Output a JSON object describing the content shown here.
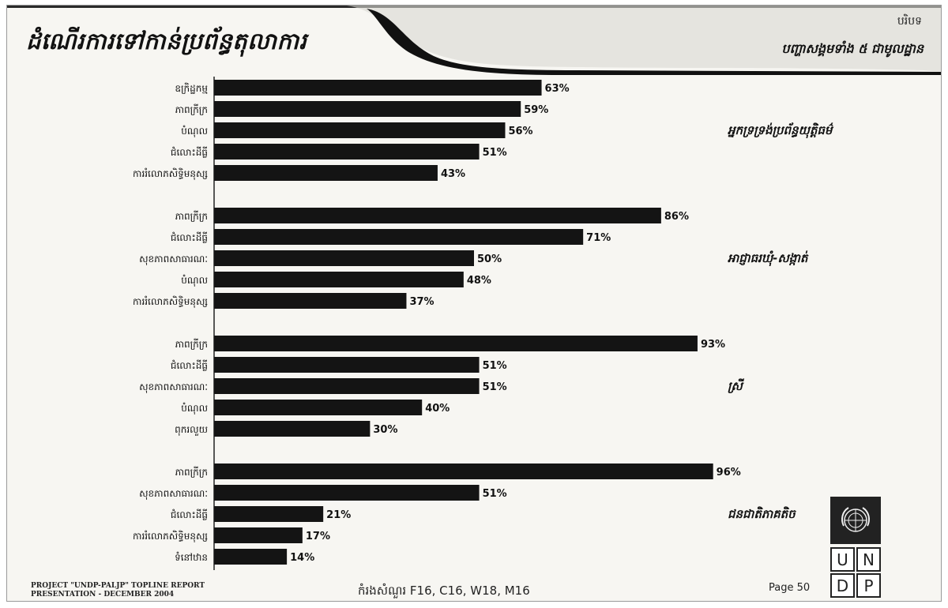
{
  "page": {
    "title": "ដំណើរការទៅកាន់ប្រព័ន្ធតុលាការ",
    "section_tag": "បរិបទ",
    "subtitle": "បញ្ហាសង្គមទាំង ៥ ជាមូលដ្ឋាន",
    "footer_project": "PROJECT \"UNDP-PALJP\" TOPLINE REPORT",
    "footer_presentation": "PRESENTATION - DECEMBER 2004",
    "footer_source": "កំរងសំណួរ F16, C16, W18, M16",
    "page_number": "Page 50"
  },
  "logo": {
    "letters": [
      "U",
      "N",
      "D",
      "P"
    ],
    "emblem": "un-emblem-icon"
  },
  "colors": {
    "bar": "#141414",
    "background": "#f7f6f2",
    "text": "#111111"
  },
  "chart_data": {
    "type": "bar",
    "orientation": "horizontal",
    "value_unit": "%",
    "xlim": [
      0,
      100
    ],
    "grid": false,
    "groups": [
      {
        "label": "អ្នកទ្រទ្រង់ប្រព័ន្ធយុត្តិធម៌",
        "categories": [
          "ឧក្រិដ្ឋកម្ម",
          "ភាពក្រីក្រ",
          "បំណុល",
          "ជំលោះដីធ្លី",
          "ការរំលោភសិទ្ធិមនុស្ស"
        ],
        "values": [
          63,
          59,
          56,
          51,
          43
        ]
      },
      {
        "label": "អាជ្ញាធរឃុំ-សង្កាត់",
        "categories": [
          "ភាពក្រីក្រ",
          "ជំលោះដីធ្លី",
          "សុខភាពសាធារណៈ",
          "បំណុល",
          "ការរំលោភសិទ្ធិមនុស្ស"
        ],
        "values": [
          86,
          71,
          50,
          48,
          37
        ]
      },
      {
        "label": "ស្រី",
        "categories": [
          "ភាពក្រីក្រ",
          "ជំលោះដីធ្លី",
          "សុខភាពសាធារណៈ",
          "បំណុល",
          "ពុករលួយ"
        ],
        "values": [
          93,
          51,
          51,
          40,
          30
        ]
      },
      {
        "label": "ជនជាតិភាគតិច",
        "categories": [
          "ភាពក្រីក្រ",
          "សុខភាពសាធារណៈ",
          "ជំលោះដីធ្លី",
          "ការរំលោភសិទ្ធិមនុស្ស",
          "ទំនៅឋាន"
        ],
        "values": [
          96,
          51,
          21,
          17,
          14
        ]
      }
    ]
  }
}
